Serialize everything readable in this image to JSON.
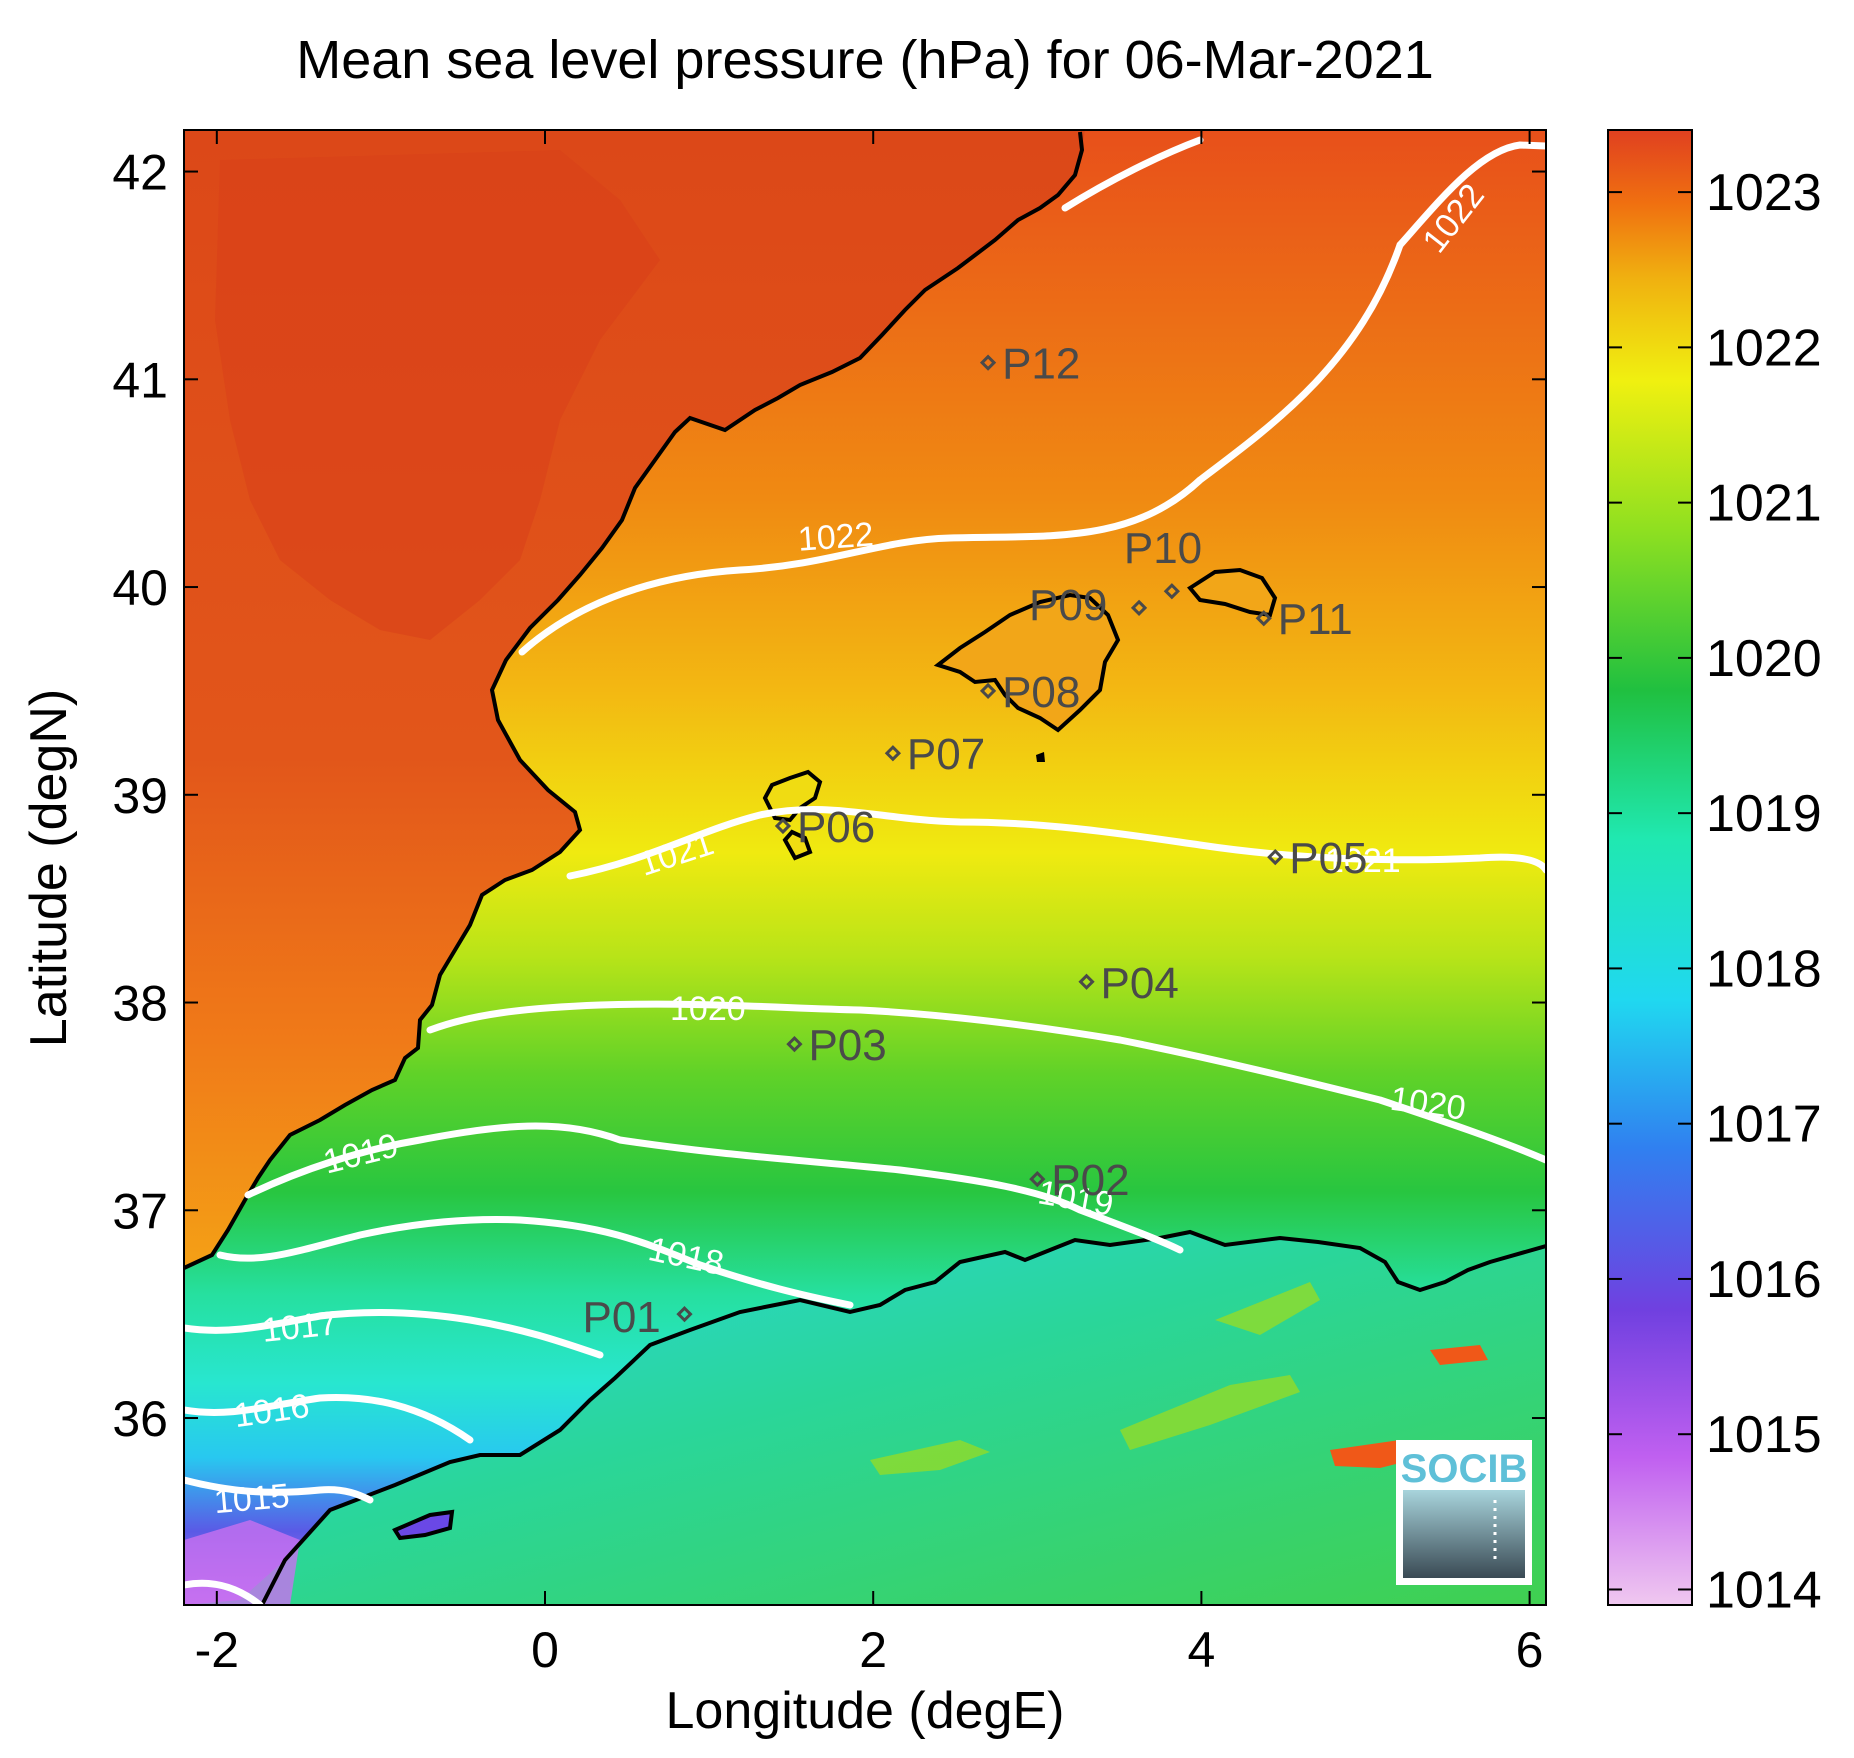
{
  "chart_data": {
    "type": "heatmap",
    "title": "Mean sea level pressure (hPa) for 06-Mar-2021",
    "xlabel": "Longitude (degE)",
    "ylabel": "Latitude (degN)",
    "xlim": [
      -2.2,
      6.1
    ],
    "ylim": [
      35.1,
      42.2
    ],
    "xticks": [
      -2,
      0,
      2,
      4,
      6
    ],
    "yticks": [
      36,
      37,
      38,
      39,
      40,
      41,
      42
    ],
    "colorbar": {
      "min": 1013.9,
      "max": 1023.4,
      "ticks": [
        1014,
        1015,
        1016,
        1017,
        1018,
        1019,
        1020,
        1021,
        1022,
        1023
      ],
      "colors": [
        "#f0c8f0",
        "#c060f0",
        "#7040e0",
        "#3080f0",
        "#20d8f0",
        "#20e8b0",
        "#20c040",
        "#90e020",
        "#f0f010",
        "#f0b010",
        "#f07010",
        "#e04020"
      ]
    },
    "contours": [
      {
        "level": 1022,
        "label": "1022"
      },
      {
        "level": 1021,
        "label": "1021"
      },
      {
        "level": 1020,
        "label": "1020"
      },
      {
        "level": 1019,
        "label": "1019"
      },
      {
        "level": 1018,
        "label": "1018"
      },
      {
        "level": 1017,
        "label": "1017"
      },
      {
        "level": 1016,
        "label": "1016"
      },
      {
        "level": 1015,
        "label": "1015"
      }
    ],
    "stations": [
      {
        "name": "P01",
        "lon": 0.85,
        "lat": 36.5
      },
      {
        "name": "P02",
        "lon": 3.0,
        "lat": 37.15
      },
      {
        "name": "P03",
        "lon": 1.52,
        "lat": 37.8
      },
      {
        "name": "P04",
        "lon": 3.3,
        "lat": 38.1
      },
      {
        "name": "P05",
        "lon": 4.45,
        "lat": 38.7
      },
      {
        "name": "P06",
        "lon": 1.45,
        "lat": 38.85
      },
      {
        "name": "P07",
        "lon": 2.12,
        "lat": 39.2
      },
      {
        "name": "P08",
        "lon": 2.7,
        "lat": 39.5
      },
      {
        "name": "P09",
        "lon": 3.62,
        "lat": 39.9
      },
      {
        "name": "P10",
        "lon": 3.82,
        "lat": 39.98
      },
      {
        "name": "P11",
        "lon": 4.38,
        "lat": 39.85
      },
      {
        "name": "P12",
        "lon": 2.7,
        "lat": 41.08
      }
    ]
  },
  "logo": {
    "text": "SOCIB"
  }
}
